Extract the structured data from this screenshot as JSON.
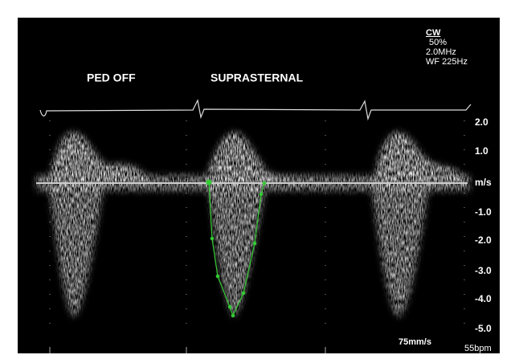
{
  "header": {
    "mode": "CW",
    "power": "50%",
    "frequency": "2.0MHz",
    "wall_filter": "WF 225Hz"
  },
  "labels": {
    "left": "PED OFF",
    "center": "SUPRASTERNAL"
  },
  "scale": [
    "2.0",
    "1.0",
    "m/s",
    "-1.0",
    "-2.0",
    "-3.0",
    "-4.0",
    "-5.0"
  ],
  "footer": {
    "sweep": "75mm/s",
    "heart_rate": "55bpm"
  }
}
